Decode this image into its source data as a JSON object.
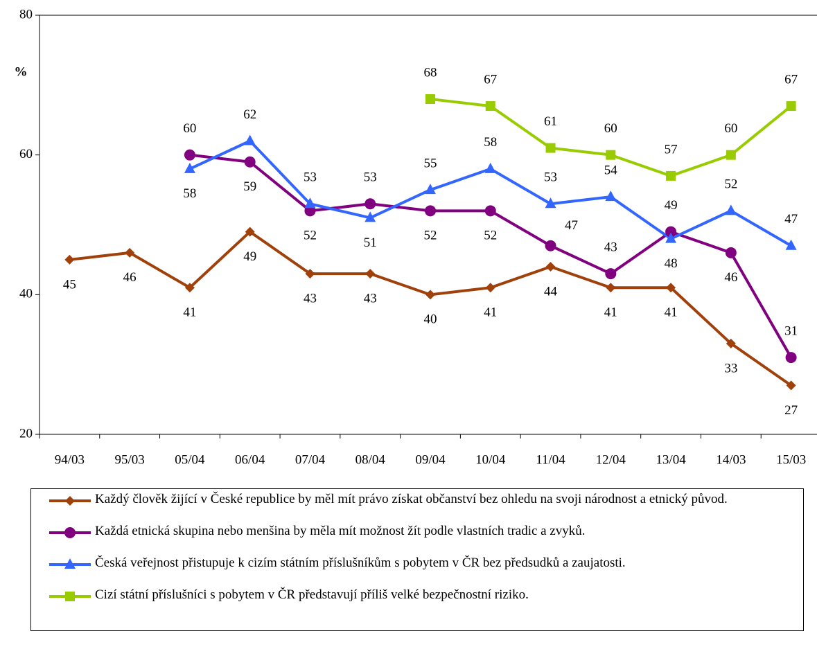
{
  "chart_data": {
    "type": "line",
    "y_label": "%",
    "categories": [
      "94/03",
      "95/03",
      "05/04",
      "06/04",
      "07/04",
      "08/04",
      "09/04",
      "10/04",
      "11/04",
      "12/04",
      "13/04",
      "14/03",
      "15/03"
    ],
    "series": [
      {
        "name": "Každý člověk žijící v České republice by měl mít právo získat občanství bez ohledu na svoji národnost a etnický původ.",
        "color": "#a0400a",
        "marker": "diamond",
        "values": [
          45,
          46,
          41,
          49,
          43,
          43,
          40,
          41,
          44,
          41,
          41,
          33,
          27
        ]
      },
      {
        "name": "Každá etnická skupina nebo menšina by měla mít možnost žít podle vlastních tradic a zvyků.",
        "color": "#800080",
        "marker": "circle",
        "values": [
          null,
          null,
          60,
          59,
          52,
          53,
          52,
          52,
          47,
          43,
          49,
          46,
          31
        ]
      },
      {
        "name": "Česká veřejnost přistupuje k cizím státním příslušníkům s pobytem v ČR bez předsudků a zaujatosti.",
        "color": "#3366ff",
        "marker": "triangle",
        "values": [
          null,
          null,
          58,
          62,
          53,
          51,
          55,
          58,
          53,
          54,
          48,
          52,
          47
        ]
      },
      {
        "name": "Cizí státní příslušníci s pobytem v ČR představují příliš velké bezpečnostní riziko.",
        "color": "#99cc00",
        "marker": "square",
        "values": [
          null,
          null,
          null,
          null,
          null,
          null,
          68,
          67,
          61,
          60,
          57,
          60,
          67
        ]
      }
    ],
    "ylim": [
      20,
      80
    ],
    "yticks": [
      20,
      40,
      60,
      80
    ],
    "grid": false
  }
}
